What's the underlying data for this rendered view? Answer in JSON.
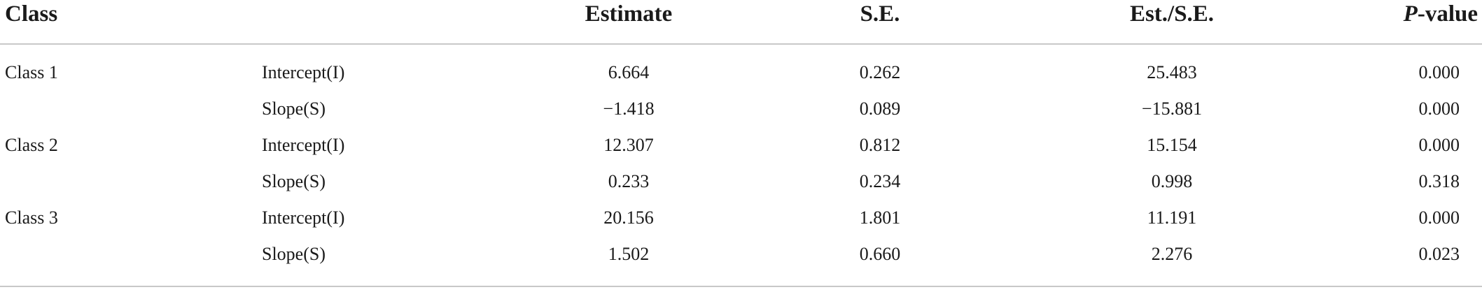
{
  "table": {
    "headers": {
      "class": "Class",
      "parameter": "",
      "estimate": "Estimate",
      "se": "S.E.",
      "est_se": "Est./S.E.",
      "p_italic": "P",
      "p_rest": "-value"
    },
    "rows": [
      {
        "class": "Class 1",
        "parameter": "Intercept(I)",
        "estimate": "6.664",
        "se": "0.262",
        "est_se": "25.483",
        "p": "0.000"
      },
      {
        "class": "",
        "parameter": "Slope(S)",
        "estimate": "−1.418",
        "se": "0.089",
        "est_se": "−15.881",
        "p": "0.000"
      },
      {
        "class": "Class 2",
        "parameter": "Intercept(I)",
        "estimate": "12.307",
        "se": "0.812",
        "est_se": "15.154",
        "p": "0.000"
      },
      {
        "class": "",
        "parameter": "Slope(S)",
        "estimate": "0.233",
        "se": "0.234",
        "est_se": "0.998",
        "p": "0.318"
      },
      {
        "class": "Class 3",
        "parameter": "Intercept(I)",
        "estimate": "20.156",
        "se": "1.801",
        "est_se": "11.191",
        "p": "0.000"
      },
      {
        "class": "",
        "parameter": "Slope(S)",
        "estimate": "1.502",
        "se": "0.660",
        "est_se": "2.276",
        "p": "0.023"
      }
    ]
  }
}
